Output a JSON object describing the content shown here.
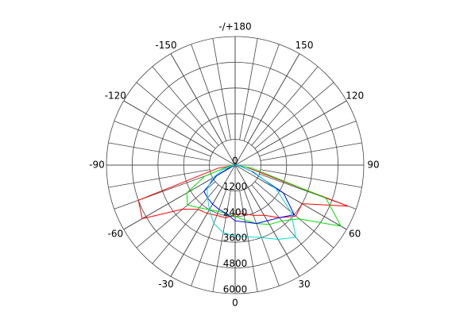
{
  "chart_data": {
    "type": "polar",
    "x": [
      -90,
      -80,
      -70,
      -60,
      -50,
      -40,
      -30,
      -20,
      -10,
      0,
      10,
      20,
      30,
      40,
      50,
      60,
      70,
      80,
      90
    ],
    "series": [
      {
        "color": "#ff0000",
        "values": [
          0,
          800,
          4800,
          5000,
          3200,
          2700,
          2600,
          2500,
          2500,
          2300,
          2300,
          2500,
          2700,
          3200,
          3700,
          3600,
          5600,
          500,
          0
        ]
      },
      {
        "color": "#00dd00",
        "values": [
          0,
          300,
          1500,
          2600,
          2900,
          2600,
          2400,
          2300,
          2300,
          2400,
          2600,
          2900,
          3200,
          3400,
          3900,
          5700,
          4500,
          800,
          0
        ]
      },
      {
        "color": "#0000ff",
        "values": [
          0,
          0,
          200,
          1000,
          1900,
          2000,
          2100,
          2200,
          2300,
          2600,
          2700,
          2900,
          3000,
          3200,
          3600,
          2600,
          800,
          200,
          0
        ]
      },
      {
        "color": "#00dddd",
        "values": [
          0,
          100,
          600,
          1200,
          1700,
          2000,
          2400,
          2900,
          3200,
          3300,
          3400,
          3600,
          4000,
          4400,
          3400,
          2200,
          900,
          200,
          0
        ]
      }
    ],
    "xticks": [
      {
        "value": 180,
        "label": "-/+180"
      },
      150,
      120,
      90,
      60,
      30,
      0,
      -30,
      -60,
      -90,
      -120,
      -150
    ],
    "ylim": [
      0,
      6000
    ],
    "yticks": [
      0,
      1200,
      2400,
      3600,
      4800,
      6000
    ],
    "grid": true
  }
}
